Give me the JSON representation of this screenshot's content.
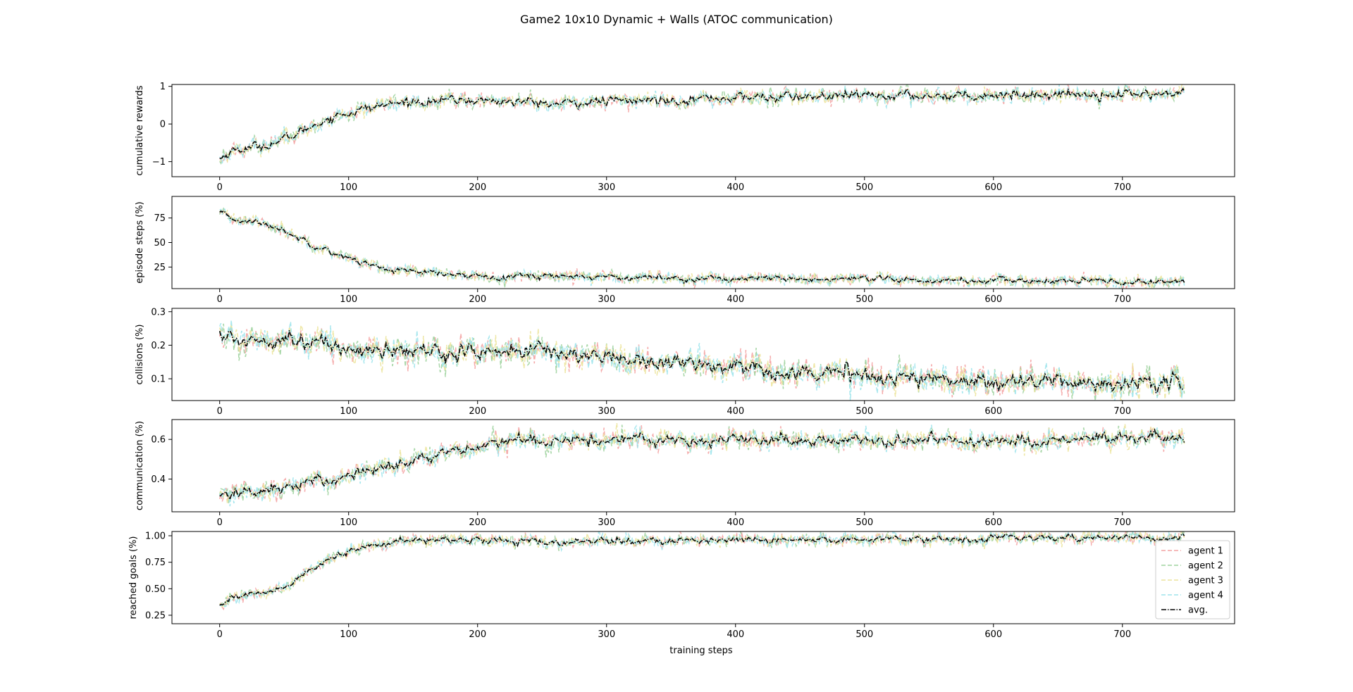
{
  "figure": {
    "title": "Game2 10x10 Dynamic + Walls (ATOC communication)"
  },
  "chart_data": {
    "type": "line",
    "title": "Game2 10x10 Dynamic + Walls (ATOC communication)",
    "xlabel": "training steps",
    "xlim": [
      -37,
      787
    ],
    "xticks": [
      0,
      100,
      200,
      300,
      400,
      500,
      600,
      700
    ],
    "series_names": [
      "agent 1",
      "agent 2",
      "agent 3",
      "agent 4",
      "avg."
    ],
    "series_colors": {
      "agent 1": "#f4a3a3",
      "agent 2": "#9fd39f",
      "agent 3": "#ece49c",
      "agent 4": "#9ee4ec",
      "avg.": "#000000"
    },
    "legend_placement": "lower-right of bottom subplot",
    "subplots": [
      {
        "key": "rewards",
        "ylabel": "cumulative rewards",
        "ylim": [
          -1.4,
          1.05
        ],
        "yticks": [
          {
            "v": -1,
            "label": "−1"
          },
          {
            "v": 0,
            "label": "0"
          },
          {
            "v": 1,
            "label": "1"
          }
        ],
        "avg_keypoints": [
          [
            0,
            -0.92
          ],
          [
            10,
            -0.7
          ],
          [
            20,
            -0.65
          ],
          [
            30,
            -0.6
          ],
          [
            40,
            -0.52
          ],
          [
            50,
            -0.42
          ],
          [
            60,
            -0.25
          ],
          [
            70,
            -0.08
          ],
          [
            80,
            0.08
          ],
          [
            90,
            0.22
          ],
          [
            100,
            0.3
          ],
          [
            110,
            0.38
          ],
          [
            120,
            0.45
          ],
          [
            130,
            0.52
          ],
          [
            150,
            0.6
          ],
          [
            180,
            0.63
          ],
          [
            200,
            0.63
          ],
          [
            220,
            0.6
          ],
          [
            240,
            0.58
          ],
          [
            260,
            0.52
          ],
          [
            280,
            0.57
          ],
          [
            300,
            0.6
          ],
          [
            320,
            0.62
          ],
          [
            350,
            0.65
          ],
          [
            400,
            0.7
          ],
          [
            450,
            0.72
          ],
          [
            500,
            0.74
          ],
          [
            550,
            0.76
          ],
          [
            600,
            0.78
          ],
          [
            650,
            0.79
          ],
          [
            700,
            0.8
          ],
          [
            748,
            0.8
          ]
        ],
        "noise": 0.05,
        "agent_noise": 0.12
      },
      {
        "key": "episode_steps",
        "ylabel": "episode steps (%)",
        "ylim": [
          3,
          97
        ],
        "yticks": [
          {
            "v": 25,
            "label": "25"
          },
          {
            "v": 50,
            "label": "50"
          },
          {
            "v": 75,
            "label": "75"
          }
        ],
        "avg_keypoints": [
          [
            0,
            80
          ],
          [
            10,
            74
          ],
          [
            20,
            72
          ],
          [
            30,
            70
          ],
          [
            40,
            67
          ],
          [
            50,
            62
          ],
          [
            60,
            56
          ],
          [
            70,
            50
          ],
          [
            80,
            44
          ],
          [
            90,
            39
          ],
          [
            100,
            34
          ],
          [
            110,
            30
          ],
          [
            120,
            26
          ],
          [
            130,
            23
          ],
          [
            150,
            20
          ],
          [
            180,
            17
          ],
          [
            200,
            16
          ],
          [
            250,
            16
          ],
          [
            300,
            15
          ],
          [
            350,
            14
          ],
          [
            400,
            13
          ],
          [
            450,
            12.5
          ],
          [
            500,
            12
          ],
          [
            550,
            11.5
          ],
          [
            600,
            11
          ],
          [
            650,
            10.5
          ],
          [
            700,
            10
          ],
          [
            748,
            10
          ]
        ],
        "noise": 1.2,
        "agent_noise": 3.5
      },
      {
        "key": "collisions",
        "ylabel": "collisions (%)",
        "ylim": [
          0.035,
          0.31
        ],
        "yticks": [
          {
            "v": 0.1,
            "label": "0.1"
          },
          {
            "v": 0.2,
            "label": "0.2"
          },
          {
            "v": 0.3,
            "label": "0.3"
          }
        ],
        "avg_keypoints": [
          [
            0,
            0.24
          ],
          [
            10,
            0.21
          ],
          [
            30,
            0.22
          ],
          [
            50,
            0.225
          ],
          [
            60,
            0.22
          ],
          [
            80,
            0.2
          ],
          [
            100,
            0.19
          ],
          [
            150,
            0.18
          ],
          [
            200,
            0.18
          ],
          [
            250,
            0.185
          ],
          [
            280,
            0.17
          ],
          [
            300,
            0.165
          ],
          [
            350,
            0.15
          ],
          [
            400,
            0.135
          ],
          [
            450,
            0.12
          ],
          [
            500,
            0.11
          ],
          [
            550,
            0.1
          ],
          [
            600,
            0.095
          ],
          [
            650,
            0.09
          ],
          [
            700,
            0.085
          ],
          [
            748,
            0.085
          ]
        ],
        "noise": 0.01,
        "agent_noise": 0.025
      },
      {
        "key": "communication",
        "ylabel": "communication (%)",
        "ylim": [
          0.235,
          0.7
        ],
        "yticks": [
          {
            "v": 0.4,
            "label": "0.4"
          },
          {
            "v": 0.6,
            "label": "0.6"
          }
        ],
        "avg_keypoints": [
          [
            0,
            0.32
          ],
          [
            20,
            0.33
          ],
          [
            40,
            0.35
          ],
          [
            60,
            0.37
          ],
          [
            80,
            0.39
          ],
          [
            100,
            0.42
          ],
          [
            120,
            0.45
          ],
          [
            140,
            0.48
          ],
          [
            160,
            0.51
          ],
          [
            180,
            0.53
          ],
          [
            200,
            0.56
          ],
          [
            220,
            0.58
          ],
          [
            240,
            0.6
          ],
          [
            260,
            0.6
          ],
          [
            300,
            0.6
          ],
          [
            400,
            0.6
          ],
          [
            500,
            0.595
          ],
          [
            600,
            0.595
          ],
          [
            700,
            0.6
          ],
          [
            748,
            0.6
          ]
        ],
        "noise": 0.012,
        "agent_noise": 0.03
      },
      {
        "key": "reached_goals",
        "ylabel": "reached goals (%)",
        "ylim": [
          0.17,
          1.04
        ],
        "yticks": [
          {
            "v": 0.25,
            "label": "0.25"
          },
          {
            "v": 0.5,
            "label": "0.50"
          },
          {
            "v": 0.75,
            "label": "0.75"
          },
          {
            "v": 1.0,
            "label": "1.00"
          }
        ],
        "avg_keypoints": [
          [
            0,
            0.35
          ],
          [
            10,
            0.43
          ],
          [
            20,
            0.44
          ],
          [
            30,
            0.45
          ],
          [
            40,
            0.48
          ],
          [
            50,
            0.52
          ],
          [
            60,
            0.6
          ],
          [
            70,
            0.67
          ],
          [
            80,
            0.74
          ],
          [
            90,
            0.8
          ],
          [
            100,
            0.85
          ],
          [
            110,
            0.88
          ],
          [
            120,
            0.91
          ],
          [
            130,
            0.93
          ],
          [
            150,
            0.96
          ],
          [
            200,
            0.96
          ],
          [
            240,
            0.95
          ],
          [
            260,
            0.93
          ],
          [
            280,
            0.94
          ],
          [
            300,
            0.95
          ],
          [
            400,
            0.96
          ],
          [
            500,
            0.97
          ],
          [
            600,
            0.975
          ],
          [
            700,
            0.98
          ],
          [
            748,
            0.98
          ]
        ],
        "noise": 0.012,
        "agent_noise": 0.035
      }
    ]
  }
}
